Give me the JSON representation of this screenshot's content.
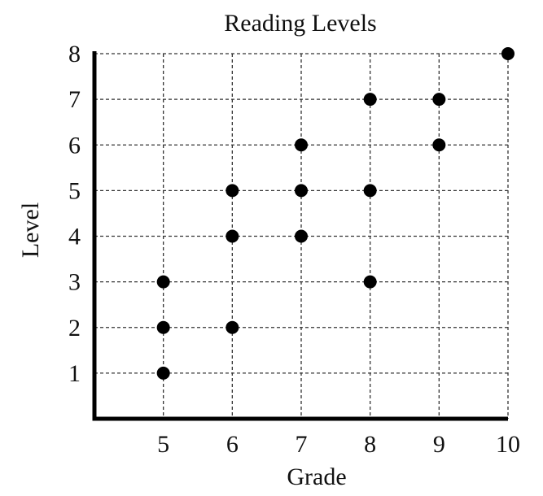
{
  "chart_data": {
    "type": "scatter",
    "title": "Reading Levels",
    "xlabel": "Grade",
    "ylabel": "Level",
    "x_ticks": [
      5,
      6,
      7,
      8,
      9,
      10
    ],
    "y_ticks": [
      1,
      2,
      3,
      4,
      5,
      6,
      7,
      8
    ],
    "xlim": [
      4,
      10
    ],
    "ylim": [
      0,
      8
    ],
    "grid": true,
    "point_color": "#000000",
    "points": [
      {
        "x": 5,
        "y": 1
      },
      {
        "x": 5,
        "y": 2
      },
      {
        "x": 5,
        "y": 3
      },
      {
        "x": 6,
        "y": 2
      },
      {
        "x": 6,
        "y": 4
      },
      {
        "x": 6,
        "y": 5
      },
      {
        "x": 7,
        "y": 4
      },
      {
        "x": 7,
        "y": 5
      },
      {
        "x": 7,
        "y": 6
      },
      {
        "x": 8,
        "y": 3
      },
      {
        "x": 8,
        "y": 5
      },
      {
        "x": 8,
        "y": 7
      },
      {
        "x": 9,
        "y": 6
      },
      {
        "x": 9,
        "y": 7
      },
      {
        "x": 10,
        "y": 8
      }
    ]
  }
}
